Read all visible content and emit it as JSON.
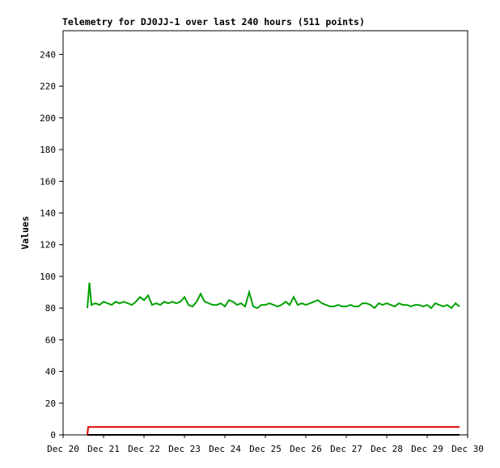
{
  "chart_data": {
    "type": "line",
    "title": "Telemetry for DJ0JJ-1 over last 240 hours (511 points)",
    "y_label": "Values",
    "xlim": [
      20,
      30
    ],
    "xticks": [
      {
        "value": 20,
        "label": "Dec 20"
      },
      {
        "value": 21,
        "label": "Dec 21"
      },
      {
        "value": 22,
        "label": "Dec 22"
      },
      {
        "value": 23,
        "label": "Dec 23"
      },
      {
        "value": 24,
        "label": "Dec 24"
      },
      {
        "value": 25,
        "label": "Dec 25"
      },
      {
        "value": 26,
        "label": "Dec 26"
      },
      {
        "value": 27,
        "label": "Dec 27"
      },
      {
        "value": 28,
        "label": "Dec 28"
      },
      {
        "value": 29,
        "label": "Dec 29"
      },
      {
        "value": 30,
        "label": "Dec 30"
      }
    ],
    "ylim": [
      0,
      255
    ],
    "yticks": [
      0,
      20,
      40,
      60,
      80,
      100,
      120,
      140,
      160,
      180,
      200,
      220,
      240
    ],
    "grid": false,
    "series": [
      {
        "color": "#00a000",
        "x": [
          20.6,
          20.65,
          20.7,
          20.8,
          20.9,
          21.0,
          21.1,
          21.2,
          21.3,
          21.4,
          21.5,
          21.6,
          21.7,
          21.8,
          21.9,
          22.0,
          22.1,
          22.2,
          22.3,
          22.4,
          22.5,
          22.6,
          22.7,
          22.8,
          22.9,
          23.0,
          23.1,
          23.2,
          23.3,
          23.4,
          23.5,
          23.6,
          23.7,
          23.8,
          23.9,
          24.0,
          24.1,
          24.2,
          24.3,
          24.4,
          24.5,
          24.6,
          24.7,
          24.8,
          24.9,
          25.0,
          25.1,
          25.2,
          25.3,
          25.4,
          25.5,
          25.6,
          25.7,
          25.8,
          25.9,
          26.0,
          26.1,
          26.2,
          26.3,
          26.4,
          26.5,
          26.6,
          26.7,
          26.8,
          26.9,
          27.0,
          27.1,
          27.2,
          27.3,
          27.4,
          27.5,
          27.6,
          27.7,
          27.8,
          27.9,
          28.0,
          28.1,
          28.2,
          28.3,
          28.4,
          28.5,
          28.6,
          28.7,
          28.8,
          28.9,
          29.0,
          29.1,
          29.2,
          29.3,
          29.4,
          29.5,
          29.6,
          29.7,
          29.8
        ],
        "values": [
          80,
          96,
          82,
          83,
          82,
          84,
          83,
          82,
          84,
          83,
          84,
          83,
          82,
          84,
          87,
          85,
          88,
          82,
          83,
          82,
          84,
          83,
          84,
          83,
          84,
          87,
          82,
          81,
          84,
          89,
          84,
          83,
          82,
          82,
          83,
          81,
          85,
          84,
          82,
          83,
          81,
          90,
          81,
          80,
          82,
          82,
          83,
          82,
          81,
          82,
          84,
          82,
          87,
          82,
          83,
          82,
          83,
          84,
          85,
          83,
          82,
          81,
          81,
          82,
          81,
          81,
          82,
          81,
          81,
          83,
          83,
          82,
          80,
          83,
          82,
          83,
          82,
          81,
          83,
          82,
          82,
          81,
          82,
          82,
          81,
          82,
          80,
          83,
          82,
          81,
          82,
          80,
          83,
          81
        ]
      },
      {
        "color": "#e00000",
        "x": [
          20.6,
          20.62,
          29.8
        ],
        "values": [
          0,
          5,
          5
        ]
      },
      {
        "color": "#000000",
        "x": [
          20.6,
          29.8
        ],
        "values": [
          0,
          0
        ]
      }
    ]
  }
}
